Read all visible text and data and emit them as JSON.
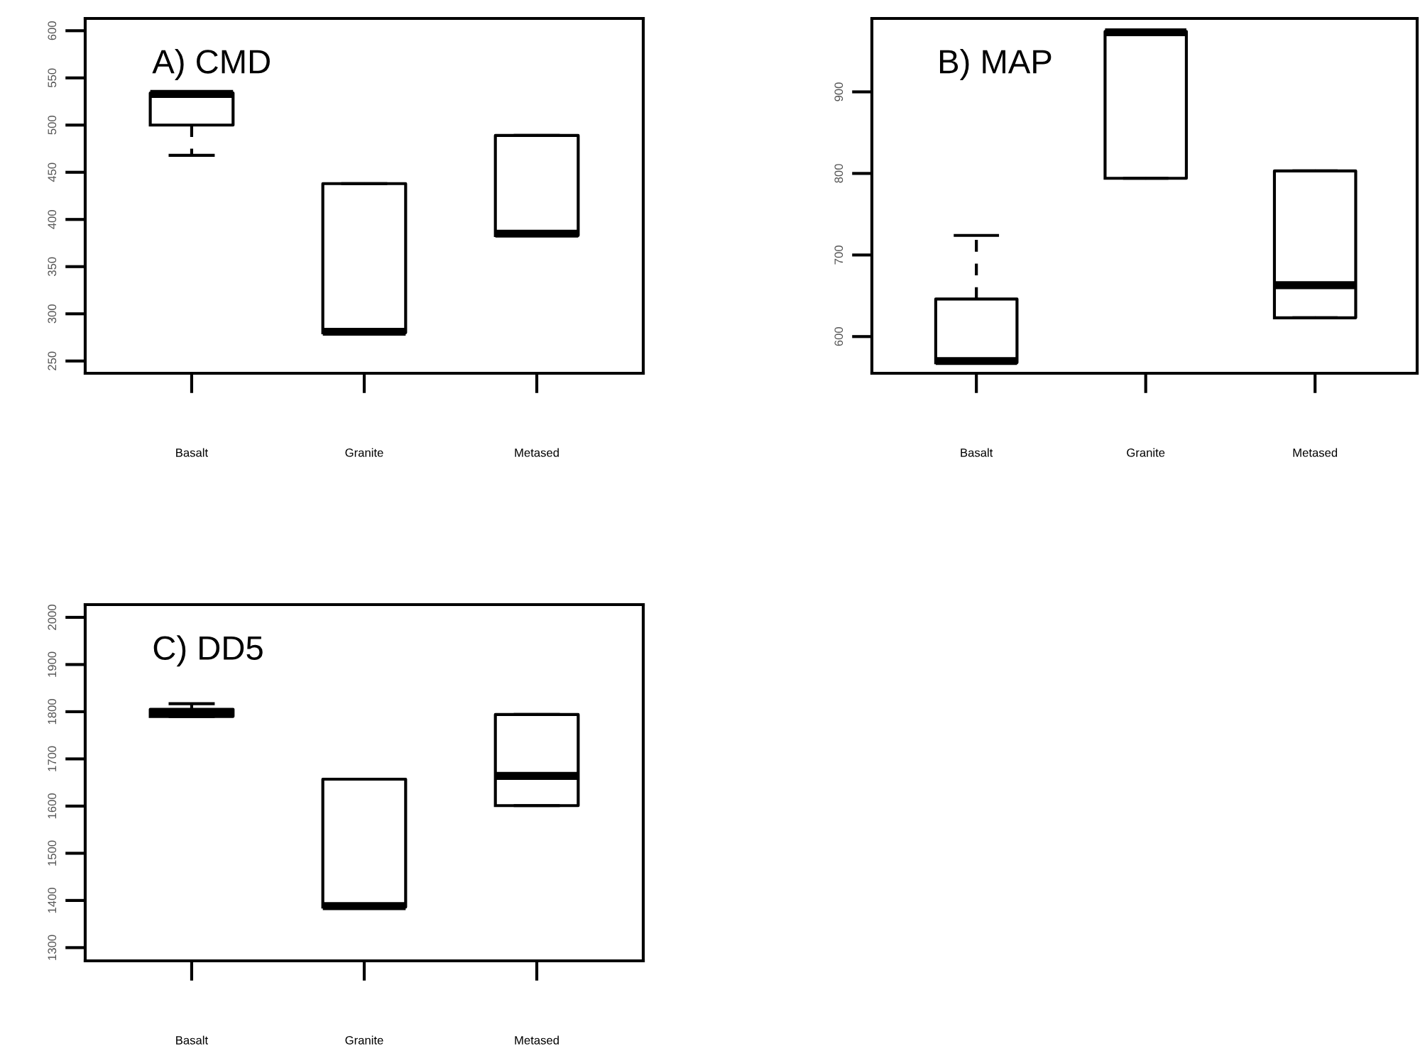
{
  "chart_data": [
    {
      "type": "box",
      "title": "A) CMD",
      "categories": [
        "Basalt",
        "Granite",
        "Metased"
      ],
      "boxes": [
        {
          "low": 468,
          "q1": 500,
          "median": 533,
          "q3": 534,
          "high": 534
        },
        {
          "low": 280,
          "q1": 280,
          "median": 281,
          "q3": 438,
          "high": 438
        },
        {
          "low": 383,
          "q1": 383,
          "median": 385,
          "q3": 489,
          "high": 489
        }
      ],
      "ylim": [
        237,
        613
      ],
      "yticks": [
        250,
        300,
        350,
        400,
        450,
        500,
        550,
        600
      ],
      "grid": false
    },
    {
      "type": "box",
      "title": "B) MAP",
      "categories": [
        "Basalt",
        "Granite",
        "Metased"
      ],
      "boxes": [
        {
          "low": 568,
          "q1": 568,
          "median": 570,
          "q3": 646,
          "high": 724
        },
        {
          "low": 794,
          "q1": 794,
          "median": 973,
          "q3": 974,
          "high": 974
        },
        {
          "low": 623,
          "q1": 623,
          "median": 663,
          "q3": 803,
          "high": 803
        }
      ],
      "ylim": [
        555,
        990
      ],
      "yticks": [
        600,
        700,
        800,
        900
      ],
      "grid": false
    },
    {
      "type": "box",
      "title": "C) DD5",
      "categories": [
        "Basalt",
        "Granite",
        "Metased"
      ],
      "boxes": [
        {
          "low": 1790,
          "q1": 1790,
          "median": 1798,
          "q3": 1805,
          "high": 1817
        },
        {
          "low": 1386,
          "q1": 1386,
          "median": 1388,
          "q3": 1657,
          "high": 1657
        },
        {
          "low": 1601,
          "q1": 1601,
          "median": 1664,
          "q3": 1794,
          "high": 1794
        }
      ],
      "ylim": [
        1272,
        2027
      ],
      "yticks": [
        1300,
        1400,
        1500,
        1600,
        1700,
        1800,
        1900,
        2000
      ],
      "grid": false
    }
  ]
}
